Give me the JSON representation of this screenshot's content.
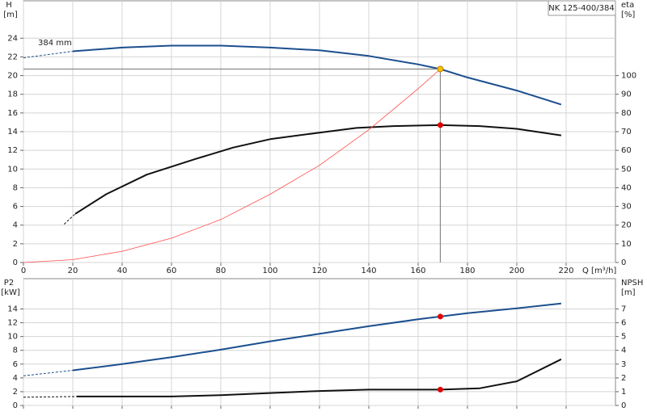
{
  "title": "NK 125-400/384",
  "chart_data": [
    {
      "type": "line",
      "ylabel": "H",
      "yunit": "[m]",
      "y2label": "eta",
      "y2unit": "[%]",
      "xlabel": "Q [m³/h]",
      "xlim": [
        0,
        240
      ],
      "xticks": [
        0,
        20,
        40,
        60,
        80,
        100,
        120,
        140,
        160,
        180,
        200,
        220
      ],
      "show_xtick_labels": true,
      "ylim": [
        0,
        28
      ],
      "yticks": [
        0,
        2,
        4,
        6,
        8,
        10,
        12,
        14,
        16,
        18,
        20,
        22,
        24
      ],
      "y2lim": [
        0,
        140
      ],
      "y2ticks": [
        0,
        10,
        20,
        30,
        40,
        50,
        60,
        70,
        80,
        90,
        100
      ],
      "grid": true,
      "annotations": [
        {
          "text": "384 mm"
        }
      ],
      "series": [
        {
          "color": "#1b4f8e",
          "axis": "y",
          "style": "dashed",
          "width": 1,
          "x": [
            0,
            20
          ],
          "values": [
            21.9,
            22.6
          ]
        },
        {
          "color": "#1b4f8e",
          "axis": "y",
          "style": "solid",
          "width": 2,
          "x": [
            20,
            40,
            60,
            80,
            100,
            120,
            140,
            160,
            169,
            180,
            200,
            218
          ],
          "values": [
            22.6,
            23.0,
            23.2,
            23.2,
            23.0,
            22.7,
            22.1,
            21.2,
            20.7,
            19.8,
            18.4,
            16.9
          ]
        },
        {
          "color": "#111111",
          "axis": "y2",
          "style": "dashed",
          "width": 1,
          "x": [
            16.5,
            21
          ],
          "values": [
            20.5,
            26
          ]
        },
        {
          "color": "#111111",
          "axis": "y2",
          "style": "solid",
          "width": 2,
          "x": [
            21,
            33.5,
            50,
            70,
            85,
            100,
            120,
            135,
            150,
            169,
            185,
            200,
            218
          ],
          "values": [
            26,
            36.5,
            47,
            55.5,
            61.5,
            66,
            69.5,
            72,
            73,
            73.5,
            73,
            71.5,
            68
          ]
        },
        {
          "color": "#ff4a4a",
          "axis": "y",
          "style": "solid",
          "width": 0.8,
          "x": [
            0,
            20,
            40,
            60,
            80,
            100,
            120,
            140,
            160,
            169
          ],
          "values": [
            0,
            0.3,
            1.2,
            2.6,
            4.6,
            7.3,
            10.4,
            14.2,
            18.6,
            20.7
          ]
        }
      ],
      "points": [
        {
          "x": 169,
          "value": 20.7,
          "color": "#f5c400",
          "axis": "y",
          "crosshair": true
        },
        {
          "x": 169,
          "value": 73.5,
          "color": "#e00000",
          "axis": "y2",
          "crosshair": false
        }
      ]
    },
    {
      "type": "line",
      "ylabel": "P2",
      "yunit": "[kW]",
      "y2label": "NPSH",
      "y2unit": "[m]",
      "xlim": [
        0,
        240
      ],
      "xticks": [
        0,
        20,
        40,
        60,
        80,
        100,
        120,
        140,
        160,
        180,
        200,
        220
      ],
      "show_xtick_labels": false,
      "ylim": [
        0,
        18.4
      ],
      "yticks": [
        0,
        2,
        4,
        6,
        8,
        10,
        12,
        14
      ],
      "y2lim": [
        0,
        9.2
      ],
      "y2ticks": [
        0,
        1,
        2,
        3,
        4,
        5,
        6,
        7
      ],
      "grid": true,
      "series": [
        {
          "color": "#1b4f8e",
          "axis": "y",
          "style": "dashed",
          "width": 1,
          "x": [
            0,
            20
          ],
          "values": [
            4.3,
            5.1
          ]
        },
        {
          "color": "#1b4f8e",
          "axis": "y",
          "style": "solid",
          "width": 2,
          "x": [
            20,
            40,
            60,
            80,
            100,
            120,
            140,
            160,
            169,
            180,
            200,
            218
          ],
          "values": [
            5.1,
            6.0,
            7.0,
            8.1,
            9.3,
            10.4,
            11.5,
            12.5,
            12.9,
            13.4,
            14.1,
            14.8
          ]
        },
        {
          "color": "#111111",
          "axis": "y2",
          "style": "dashed",
          "width": 1,
          "x": [
            0,
            21.6
          ],
          "values": [
            0.6,
            0.65
          ]
        },
        {
          "color": "#111111",
          "axis": "y2",
          "style": "solid",
          "width": 2,
          "x": [
            21.6,
            60,
            80,
            100,
            120,
            140,
            169,
            185,
            200,
            218
          ],
          "values": [
            0.65,
            0.65,
            0.75,
            0.9,
            1.05,
            1.15,
            1.15,
            1.25,
            1.75,
            3.35
          ]
        }
      ],
      "points": [
        {
          "x": 169,
          "value": 12.9,
          "color": "#e00000",
          "axis": "y",
          "crosshair": false
        },
        {
          "x": 169,
          "value": 1.15,
          "color": "#e00000",
          "axis": "y2",
          "crosshair": false
        }
      ]
    }
  ]
}
